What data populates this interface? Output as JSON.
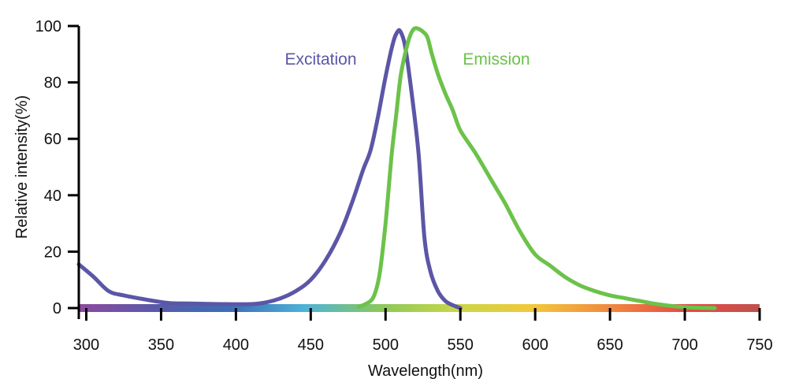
{
  "chart_data": {
    "type": "line",
    "xlabel": "Wavelength(nm)",
    "ylabel": "Relative intensity(%)",
    "xlim": [
      295,
      750
    ],
    "ylim": [
      0,
      100
    ],
    "x_ticks": [
      300,
      350,
      400,
      450,
      500,
      550,
      600,
      650,
      700,
      750
    ],
    "y_ticks": [
      0,
      20,
      40,
      60,
      80,
      100
    ],
    "grid": false,
    "spectrum_bar": {
      "colors": [
        "#8e4a9e",
        "#5a5aa8",
        "#3b6fb6",
        "#4fb3d6",
        "#8cc85a",
        "#c9d648",
        "#f2c83a",
        "#f08a3e",
        "#e84a45",
        "#c0504d"
      ]
    },
    "series": [
      {
        "name": "Excitation",
        "color": "#5b56a6",
        "x": [
          295,
          305,
          315,
          325,
          340,
          355,
          370,
          390,
          410,
          420,
          430,
          440,
          450,
          460,
          470,
          478,
          485,
          490,
          495,
          500,
          505,
          508,
          510,
          513,
          517,
          522,
          526,
          530,
          535,
          540,
          545,
          550
        ],
        "y": [
          15.5,
          11,
          6,
          4.5,
          3,
          1.8,
          1.6,
          1.4,
          1.4,
          2,
          3.5,
          6,
          10,
          17,
          27,
          38,
          49,
          56,
          68,
          82,
          94,
          98,
          98,
          93,
          78,
          55,
          25,
          13,
          6,
          2.5,
          1,
          0
        ]
      },
      {
        "name": "Emission",
        "color": "#6cc24a",
        "x": [
          482,
          487,
          492,
          496,
          500,
          504,
          507,
          510,
          513,
          516,
          519,
          522,
          525,
          528,
          531,
          535,
          540,
          545,
          550,
          560,
          570,
          580,
          590,
          600,
          610,
          620,
          630,
          640,
          650,
          660,
          670,
          680,
          690,
          700,
          710,
          720
        ],
        "y": [
          0.5,
          1.5,
          4,
          12,
          30,
          54,
          68,
          82,
          90,
          96,
          99,
          99,
          98,
          96,
          90,
          83,
          76,
          70,
          63,
          55,
          46,
          37,
          27,
          19,
          15,
          11,
          8,
          6,
          4.5,
          3.5,
          2.5,
          1.5,
          0.8,
          0.3,
          0.1,
          0
        ]
      }
    ]
  }
}
